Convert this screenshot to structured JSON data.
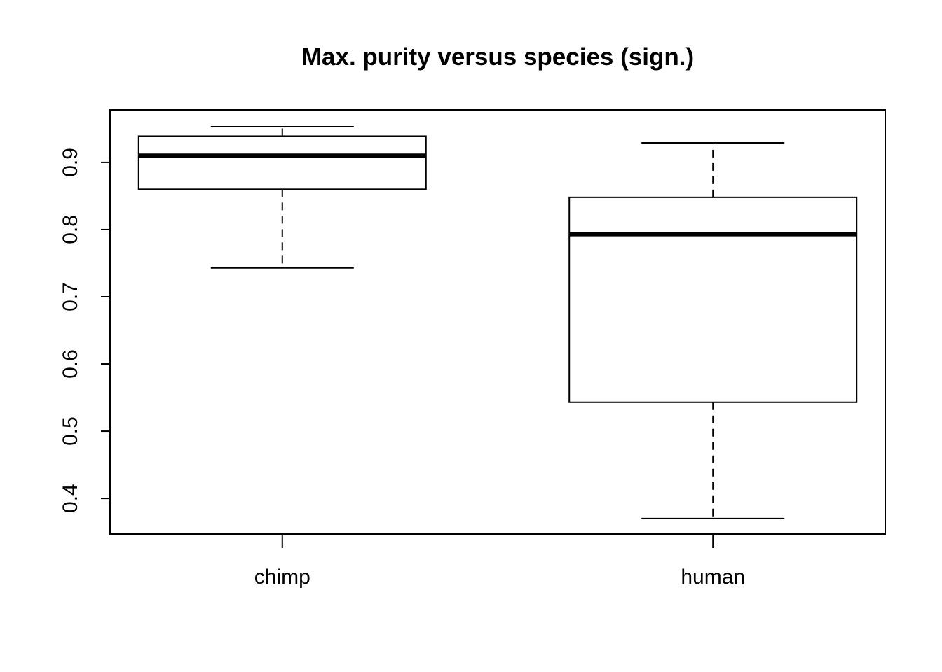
{
  "chart_data": {
    "type": "box",
    "title": "Max. purity versus species (sign.)",
    "xlabel": "",
    "ylabel": "",
    "ylim": [
      0.347,
      0.978
    ],
    "yticks": [
      0.4,
      0.5,
      0.6,
      0.7,
      0.8,
      0.9
    ],
    "ytick_labels": [
      "0.4",
      "0.5",
      "0.6",
      "0.7",
      "0.8",
      "0.9"
    ],
    "categories": [
      "chimp",
      "human"
    ],
    "boxes": [
      {
        "category": "chimp",
        "whisker_low": 0.743,
        "q1": 0.86,
        "median": 0.91,
        "q3": 0.939,
        "whisker_high": 0.953
      },
      {
        "category": "human",
        "whisker_low": 0.37,
        "q1": 0.543,
        "median": 0.793,
        "q3": 0.848,
        "whisker_high": 0.929
      }
    ],
    "grid": false,
    "legend": "none",
    "colors": {
      "line": "#000000",
      "fill": "#ffffff"
    }
  }
}
